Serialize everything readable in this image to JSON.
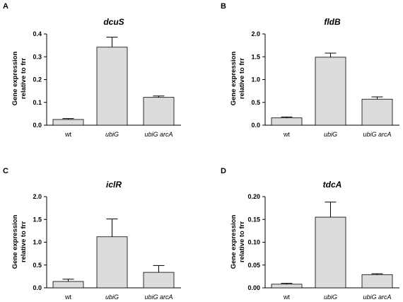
{
  "chart_data": [
    {
      "panel": "A",
      "type": "bar",
      "title": "dcuS",
      "ylabel": [
        "Gene expression",
        "relative to frr"
      ],
      "categories": [
        "wt",
        "ubiG",
        "ubiG arcA"
      ],
      "values": [
        0.025,
        0.342,
        0.122
      ],
      "errors": [
        0.004,
        0.044,
        0.006
      ],
      "ylim": [
        0,
        0.4
      ],
      "yticks": [
        "0.0",
        "0.1",
        "0.2",
        "0.3",
        "0.4"
      ],
      "ytick_values": [
        0,
        0.1,
        0.2,
        0.3,
        0.4
      ]
    },
    {
      "panel": "B",
      "type": "bar",
      "title": "fldB",
      "ylabel": [
        "Gene expression",
        "relative to frr"
      ],
      "categories": [
        "wt",
        "ubiG",
        "ubiG arcA"
      ],
      "values": [
        0.16,
        1.49,
        0.57
      ],
      "errors": [
        0.02,
        0.09,
        0.05
      ],
      "ylim": [
        0,
        2.0
      ],
      "yticks": [
        "0.0",
        "0.5",
        "1.0",
        "1.5",
        "2.0"
      ],
      "ytick_values": [
        0,
        0.5,
        1.0,
        1.5,
        2.0
      ]
    },
    {
      "panel": "C",
      "type": "bar",
      "title": "iclR",
      "ylabel": [
        "Gene expression",
        "relative to frr"
      ],
      "categories": [
        "wt",
        "ubiG",
        "ubiG arcA"
      ],
      "values": [
        0.14,
        1.12,
        0.34
      ],
      "errors": [
        0.05,
        0.39,
        0.15
      ],
      "ylim": [
        0,
        2.0
      ],
      "yticks": [
        "0.0",
        "0.5",
        "1.0",
        "1.5",
        "2.0"
      ],
      "ytick_values": [
        0,
        0.5,
        1.0,
        1.5,
        2.0
      ]
    },
    {
      "panel": "D",
      "type": "bar",
      "title": "tdcA",
      "ylabel": [
        "Gene expression",
        "relative to frr"
      ],
      "categories": [
        "wt",
        "ubiG",
        "ubiG arcA"
      ],
      "values": [
        0.008,
        0.155,
        0.029
      ],
      "errors": [
        0.002,
        0.033,
        0.002
      ],
      "ylim": [
        0,
        0.2
      ],
      "yticks": [
        "0.00",
        "0.05",
        "0.10",
        "0.15",
        "0.20"
      ],
      "ytick_values": [
        0,
        0.05,
        0.1,
        0.15,
        0.2
      ]
    }
  ]
}
